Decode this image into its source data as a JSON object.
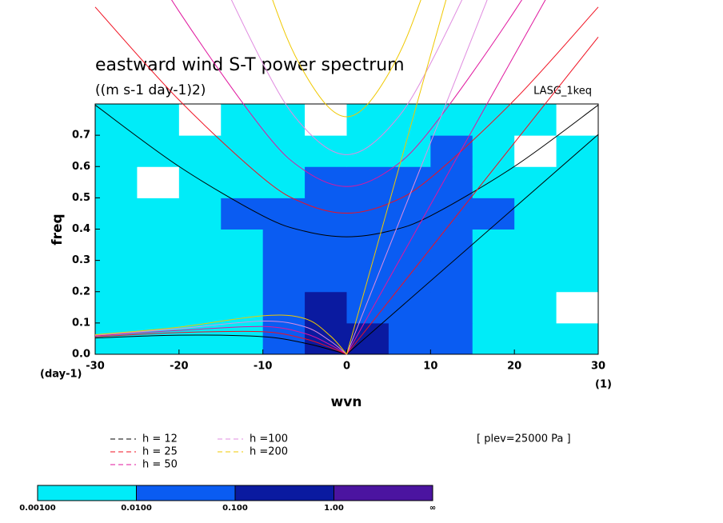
{
  "chart_data": {
    "type": "heatmap",
    "title": "eastward wind S-T power spectrum",
    "subtitle": "((m s-1 day-1)2)",
    "tag": "LASG_1keq",
    "x_label": "wvn",
    "y_label": "freq",
    "y_unit": "(day-1)",
    "x_unit": "(1)",
    "note": "[ plev=25000 Pa ]",
    "xlim": [
      -30,
      30
    ],
    "ylim": [
      0,
      0.8
    ],
    "xticks": [
      -30,
      -20,
      -10,
      0,
      10,
      20,
      30
    ],
    "yticks": [
      {
        "value": 0,
        "label": "0.0"
      },
      0.1,
      0.2,
      0.3,
      0.4,
      0.5,
      0.6,
      0.7
    ],
    "xbins": [
      -30,
      -25,
      -20,
      -15,
      -10,
      -5,
      0,
      5,
      10,
      15,
      20,
      25,
      30
    ],
    "ybins": [
      0,
      0.1,
      0.2,
      0.3,
      0.4,
      0.5,
      0.6,
      0.7,
      0.8
    ],
    "z": [
      [
        0.005,
        0.005,
        0.005,
        0.005,
        0.05,
        0.5,
        0.5,
        0.05,
        0.05,
        0.005,
        0.005,
        0.005
      ],
      [
        0.005,
        0.005,
        0.005,
        0.005,
        0.05,
        0.5,
        0.05,
        0.05,
        0.05,
        0.005,
        0.005,
        0.0005
      ],
      [
        0.005,
        0.005,
        0.005,
        0.005,
        0.05,
        0.05,
        0.05,
        0.05,
        0.05,
        0.005,
        0.005,
        0.005
      ],
      [
        0.005,
        0.005,
        0.005,
        0.005,
        0.05,
        0.05,
        0.05,
        0.05,
        0.05,
        0.005,
        0.005,
        0.005
      ],
      [
        0.005,
        0.005,
        0.005,
        0.05,
        0.05,
        0.05,
        0.05,
        0.05,
        0.05,
        0.05,
        0.005,
        0.005
      ],
      [
        0.005,
        0.0005,
        0.005,
        0.005,
        0.005,
        0.05,
        0.05,
        0.05,
        0.05,
        0.005,
        0.005,
        0.005
      ],
      [
        0.005,
        0.005,
        0.005,
        0.005,
        0.005,
        0.005,
        0.005,
        0.005,
        0.05,
        0.005,
        0.0005,
        0.005
      ],
      [
        0.005,
        0.005,
        0.0005,
        0.005,
        0.005,
        0.0005,
        0.005,
        0.005,
        0.005,
        0.005,
        0.005,
        0.0005
      ]
    ],
    "colorbar": {
      "ticks": [
        {
          "value": 0.001,
          "label": "0.00100"
        },
        {
          "value": 0.01,
          "label": "0.0100"
        },
        {
          "value": 0.1,
          "label": "0.100"
        },
        {
          "value": 1,
          "label": "1.00"
        }
      ],
      "end_label": "∞",
      "colors": [
        "#00ecf8",
        "#0a5cf2",
        "#0a1aa0",
        "#4b14a0"
      ]
    },
    "series": [
      {
        "name": "h = 12",
        "color": "#000000",
        "kelvin": {
          "x": [
            0,
            30
          ],
          "y": [
            0,
            0.7026
          ]
        },
        "ig": {
          "x": [
            -30,
            -20,
            -10,
            -5,
            0,
            5,
            10,
            20,
            30
          ],
          "y": [
            0.7966,
            0.6003,
            0.4424,
            0.3932,
            0.3754,
            0.3932,
            0.4424,
            0.6003,
            0.7966
          ]
        },
        "er": {
          "x": [
            -30,
            -20,
            -10,
            -5,
            -2,
            0
          ],
          "y": [
            0.052,
            0.0611,
            0.0562,
            0.0356,
            0.0154,
            0
          ]
        }
      },
      {
        "name": "h = 25",
        "color": "#f01020",
        "kelvin": {
          "x": [
            0,
            30
          ],
          "y": [
            0,
            1.014
          ]
        },
        "ig": {
          "x": [
            -30,
            -20,
            -10,
            -5,
            0,
            5,
            10,
            20,
            30
          ],
          "y": [
            1.1097,
            0.8127,
            0.5636,
            0.4816,
            0.451,
            0.4816,
            0.5636,
            0.8127,
            1.1097
          ]
        },
        "er": {
          "x": [
            -30,
            -20,
            -10,
            -5,
            -2,
            0
          ],
          "y": [
            0.0558,
            0.0694,
            0.0721,
            0.0494,
            0.022,
            0
          ]
        }
      },
      {
        "name": "h = 50",
        "color": "#e0169e",
        "kelvin": {
          "x": [
            0,
            30
          ],
          "y": [
            0,
            1.434
          ]
        },
        "ig": {
          "x": [
            -30,
            -20,
            -10,
            -5,
            0,
            5,
            10,
            20,
            30
          ],
          "y": [
            1.531,
            1.096,
            0.7182,
            0.5869,
            0.536,
            0.5869,
            0.7182,
            1.096,
            1.531
          ]
        },
        "er": {
          "x": [
            -30,
            -20,
            -10,
            -5,
            -2,
            0
          ],
          "y": [
            0.0587,
            0.0763,
            0.0888,
            0.0665,
            0.0309,
            0
          ]
        }
      },
      {
        "name": "h =100",
        "color": "#e08ce0",
        "kelvin": {
          "x": [
            0,
            30
          ],
          "y": [
            0,
            2.028
          ]
        },
        "ig": {
          "x": [
            -30,
            -20,
            -10,
            -5,
            0,
            5,
            10,
            20,
            30
          ],
          "y": [
            2.126,
            1.495,
            0.9295,
            0.722,
            0.638,
            0.722,
            0.9295,
            1.495,
            2.126
          ]
        },
        "er": {
          "x": [
            -30,
            -20,
            -10,
            -5,
            -2,
            0
          ],
          "y": [
            0.0609,
            0.0821,
            0.1061,
            0.088,
            0.0431,
            0
          ]
        }
      },
      {
        "name": "h =200",
        "color": "#f0c800",
        "kelvin": {
          "x": [
            0,
            30
          ],
          "y": [
            0,
            2.868
          ]
        },
        "ig": {
          "x": [
            -30,
            -20,
            -10,
            -5,
            0,
            5,
            10,
            20,
            30
          ],
          "y": [
            2.967,
            2.057,
            1.2207,
            0.897,
            0.759,
            0.897,
            1.2207,
            2.057,
            2.967
          ]
        },
        "er": {
          "x": [
            -30,
            -20,
            -10,
            -5,
            -2,
            0
          ],
          "y": [
            0.0625,
            0.0867,
            0.1231,
            0.114,
            0.0599,
            0
          ]
        }
      }
    ]
  }
}
